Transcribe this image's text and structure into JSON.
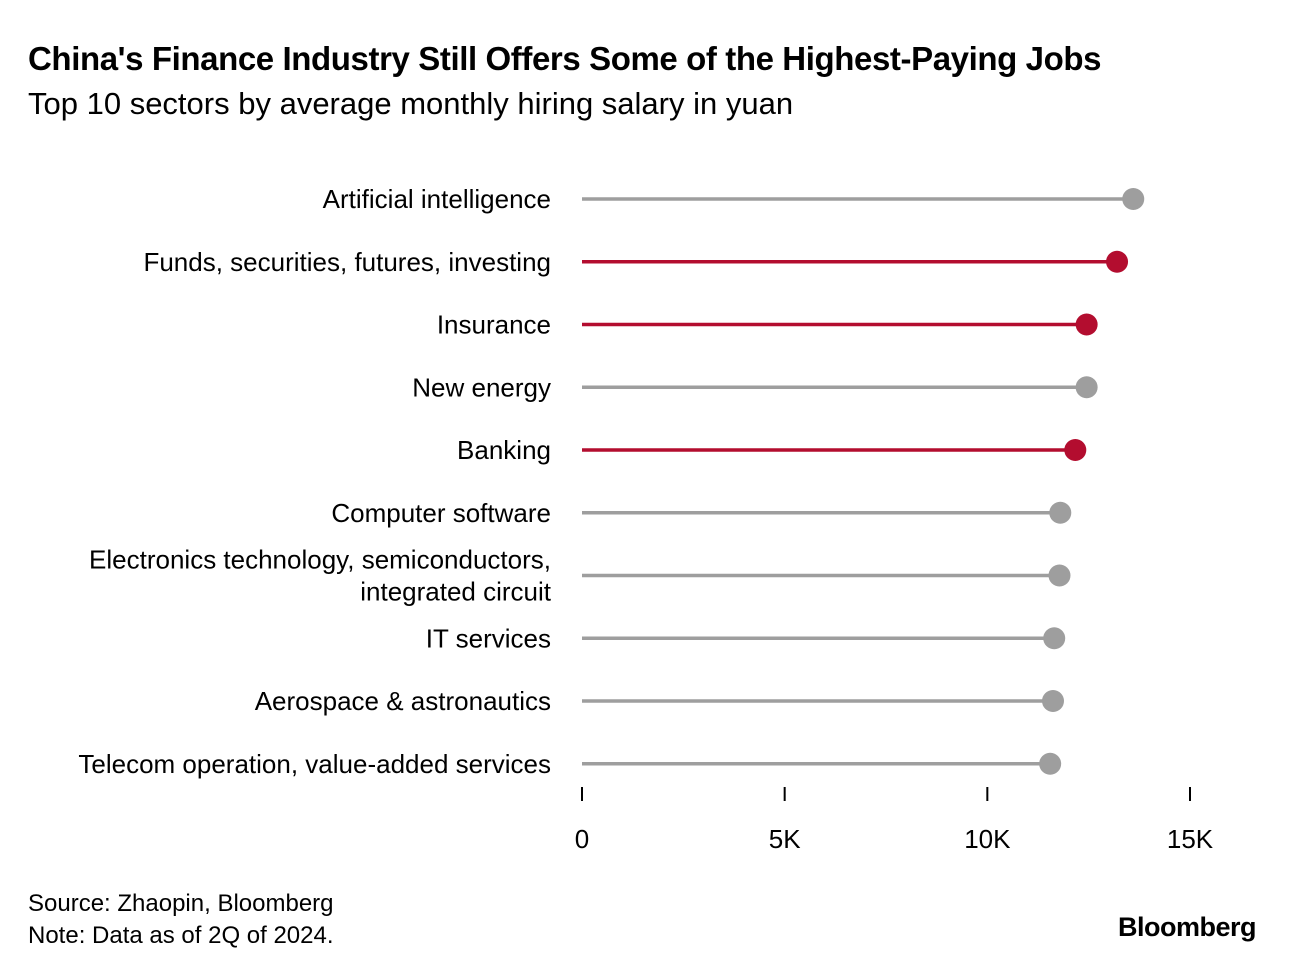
{
  "chart_data": {
    "type": "lollipop",
    "title": "China's Finance Industry Still Offers Some of the Highest-Paying Jobs",
    "subtitle": "Top 10 sectors by average monthly hiring salary in yuan",
    "categories": [
      [
        "Artificial intelligence"
      ],
      [
        "Funds, securities, futures, investing"
      ],
      [
        "Insurance"
      ],
      [
        "New energy"
      ],
      [
        "Banking"
      ],
      [
        "Computer software"
      ],
      [
        "Electronics technology, semiconductors,",
        "integrated circuit"
      ],
      [
        "IT services"
      ],
      [
        "Aerospace & astronautics"
      ],
      [
        "Telecom operation, value-added services"
      ]
    ],
    "values": [
      13600,
      13200,
      12450,
      12450,
      12170,
      11800,
      11780,
      11650,
      11620,
      11550
    ],
    "highlight": [
      false,
      true,
      true,
      false,
      true,
      false,
      false,
      false,
      false,
      false
    ],
    "xlim": [
      0,
      15000
    ],
    "xticks": [
      0,
      5000,
      10000,
      15000
    ],
    "xtick_labels": [
      "0",
      "5K",
      "10K",
      "15K"
    ],
    "xlabel": "",
    "ylabel": "",
    "grid": false,
    "legend": "none"
  },
  "colors": {
    "highlight": "#b30d2f",
    "default": "#9e9e9e",
    "axis": "#000000",
    "text": "#000000"
  },
  "footer": {
    "source": "Source: Zhaopin, Bloomberg",
    "note": "Note: Data as of 2Q of 2024.",
    "brand": "Bloomberg"
  }
}
